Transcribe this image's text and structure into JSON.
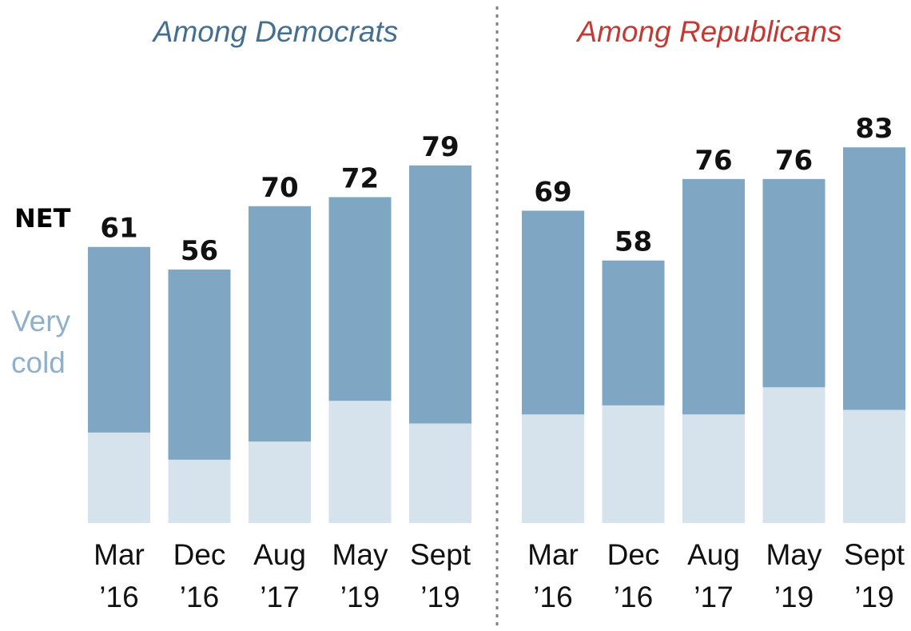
{
  "chart_data": [
    {
      "type": "bar",
      "title": "Among Democrats",
      "categories": [
        "Mar '16",
        "Dec '16",
        "Aug '17",
        "May '19",
        "Sept '19"
      ],
      "tick_lines": [
        [
          "Mar",
          "’16"
        ],
        [
          "Dec",
          "’16"
        ],
        [
          "Aug",
          "’17"
        ],
        [
          "May",
          "’19"
        ],
        [
          "Sept",
          "’19"
        ]
      ],
      "series": [
        {
          "name": "NET",
          "values": [
            61,
            56,
            70,
            72,
            79
          ]
        },
        {
          "name": "Very cold",
          "values": [
            20,
            14,
            18,
            27,
            22
          ]
        }
      ],
      "ylim": [
        0,
        83
      ]
    },
    {
      "type": "bar",
      "title": "Among Republicans",
      "categories": [
        "Mar '16",
        "Dec '16",
        "Aug '17",
        "May '19",
        "Sept '19"
      ],
      "tick_lines": [
        [
          "Mar",
          "’16"
        ],
        [
          "Dec",
          "’16"
        ],
        [
          "Aug",
          "’17"
        ],
        [
          "May",
          "’19"
        ],
        [
          "Sept",
          "’19"
        ]
      ],
      "series": [
        {
          "name": "NET",
          "values": [
            69,
            58,
            76,
            76,
            83
          ]
        },
        {
          "name": "Very cold",
          "values": [
            24,
            26,
            24,
            30,
            25
          ]
        }
      ],
      "ylim": [
        0,
        83
      ]
    }
  ],
  "legend": {
    "net_label": "NET",
    "very_cold_lines": [
      "Very",
      "cold"
    ]
  },
  "colors": {
    "net": "#7fa6c3",
    "very_cold": "#d7e3ec",
    "dem_title": "#456f91",
    "rep_title": "#c23a33",
    "very_cold_text": "#8fb0c9",
    "divider": "#808080"
  }
}
